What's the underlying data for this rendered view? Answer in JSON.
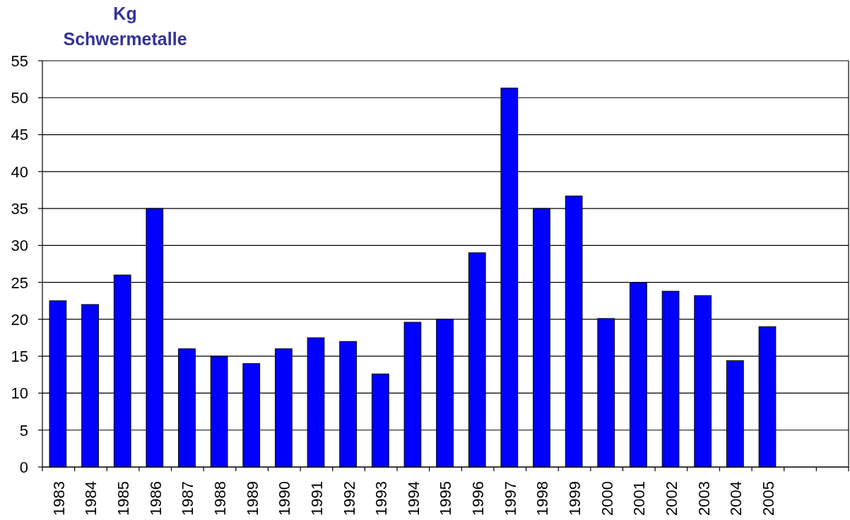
{
  "chart_data": {
    "type": "bar",
    "ylabel": "Kg\nSchwermetalle",
    "categories": [
      "1983",
      "1984",
      "1985",
      "1986",
      "1987",
      "1988",
      "1989",
      "1990",
      "1991",
      "1992",
      "1993",
      "1994",
      "1995",
      "1996",
      "1997",
      "1998",
      "1999",
      "2000",
      "2001",
      "2002",
      "2003",
      "2004",
      "2005",
      null,
      null
    ],
    "values": [
      22.5,
      22,
      26,
      35,
      16,
      15,
      14,
      16,
      17.5,
      17,
      12.6,
      19.6,
      20,
      29,
      51.3,
      35,
      36.7,
      20.1,
      25,
      23.8,
      23.2,
      14.4,
      19,
      null,
      null
    ],
    "color": "#0000ff",
    "ylim": [
      0,
      55
    ],
    "yticks": [
      0,
      5,
      10,
      15,
      20,
      25,
      30,
      35,
      40,
      45,
      50,
      55
    ],
    "grid": "y"
  }
}
